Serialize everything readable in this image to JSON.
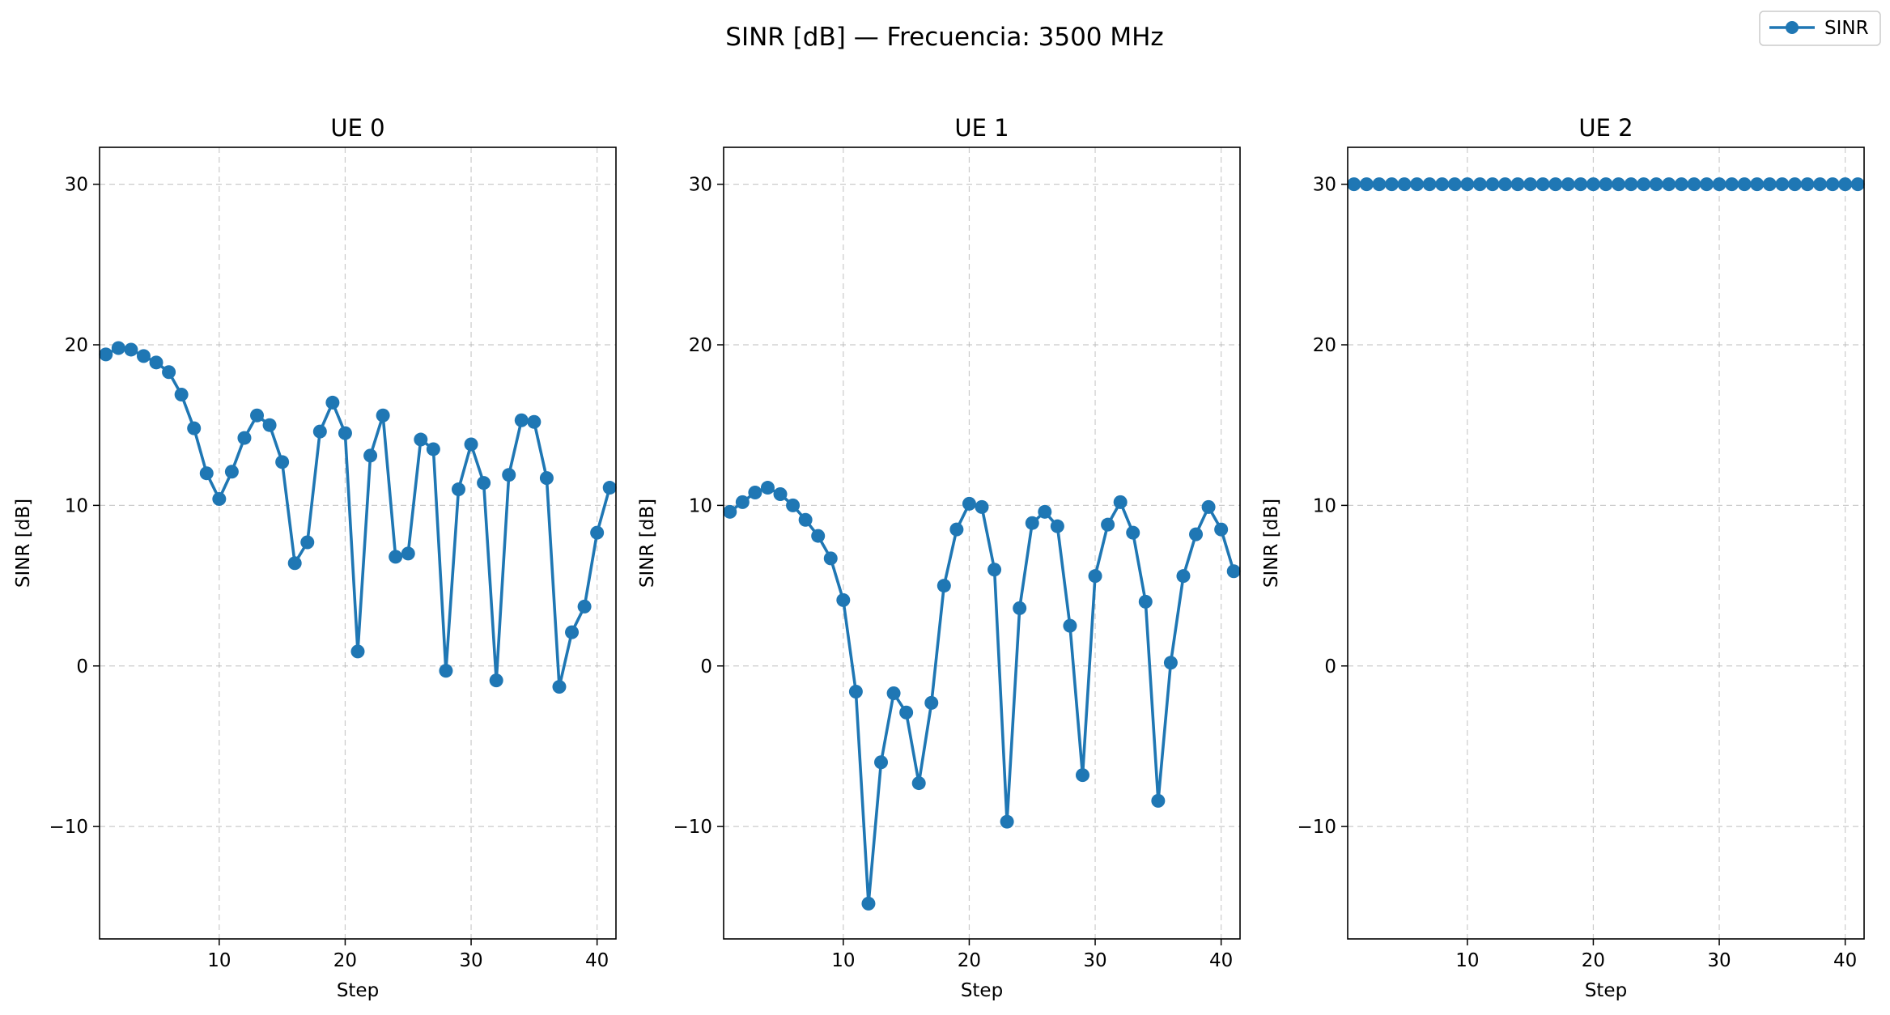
{
  "figure": {
    "title": "SINR [dB] — Frecuencia: 3500 MHz",
    "series_color": "#1f77b4",
    "legend": {
      "label": "SINR",
      "placement": "upper-right"
    }
  },
  "chart_data": [
    {
      "type": "line",
      "title": "UE 0",
      "xlabel": "Step",
      "ylabel": "SINR [dB]",
      "xlim": [
        0.5,
        41.5
      ],
      "ylim": [
        -17,
        32.3
      ],
      "xticks": [
        10,
        20,
        30,
        40
      ],
      "xtick_labels": [
        "10",
        "20",
        "30",
        "40"
      ],
      "yticks": [
        -10,
        0,
        10,
        20,
        30
      ],
      "ytick_labels": [
        "−10",
        "0",
        "10",
        "20",
        "30"
      ],
      "grid": true,
      "series": [
        {
          "name": "SINR",
          "marker": "circle",
          "x": [
            1,
            2,
            3,
            4,
            5,
            6,
            7,
            8,
            9,
            10,
            11,
            12,
            13,
            14,
            15,
            16,
            17,
            18,
            19,
            20,
            21,
            22,
            23,
            24,
            25,
            26,
            27,
            28,
            29,
            30,
            31,
            32,
            33,
            34,
            35,
            36,
            37,
            38,
            39,
            40,
            41
          ],
          "values": [
            19.4,
            19.8,
            19.7,
            19.3,
            18.9,
            18.3,
            16.9,
            14.8,
            12.0,
            10.4,
            12.1,
            14.2,
            15.6,
            15.0,
            12.7,
            6.4,
            7.7,
            14.6,
            16.4,
            14.5,
            0.9,
            13.1,
            15.6,
            6.8,
            7.0,
            14.1,
            13.5,
            -0.3,
            11.0,
            13.8,
            11.4,
            -0.9,
            11.9,
            15.3,
            15.2,
            11.7,
            -1.3,
            2.1,
            3.7,
            8.3,
            11.1
          ]
        }
      ]
    },
    {
      "type": "line",
      "title": "UE 1",
      "xlabel": "Step",
      "ylabel": "SINR [dB]",
      "xlim": [
        0.5,
        41.5
      ],
      "ylim": [
        -17,
        32.3
      ],
      "xticks": [
        10,
        20,
        30,
        40
      ],
      "xtick_labels": [
        "10",
        "20",
        "30",
        "40"
      ],
      "yticks": [
        -10,
        0,
        10,
        20,
        30
      ],
      "ytick_labels": [
        "−10",
        "0",
        "10",
        "20",
        "30"
      ],
      "grid": true,
      "series": [
        {
          "name": "SINR",
          "marker": "circle",
          "x": [
            1,
            2,
            3,
            4,
            5,
            6,
            7,
            8,
            9,
            10,
            11,
            12,
            13,
            14,
            15,
            16,
            17,
            18,
            19,
            20,
            21,
            22,
            23,
            24,
            25,
            26,
            27,
            28,
            29,
            30,
            31,
            32,
            33,
            34,
            35,
            36,
            37,
            38,
            39,
            40,
            41
          ],
          "values": [
            9.6,
            10.2,
            10.8,
            11.1,
            10.7,
            10.0,
            9.1,
            8.1,
            6.7,
            4.1,
            -1.6,
            -14.8,
            -6.0,
            -1.7,
            -2.9,
            -7.3,
            -2.3,
            5.0,
            8.5,
            10.1,
            9.9,
            6.0,
            -9.7,
            3.6,
            8.9,
            9.6,
            8.7,
            2.5,
            -6.8,
            5.6,
            8.8,
            10.2,
            8.3,
            4.0,
            -8.4,
            0.2,
            5.6,
            8.2,
            9.9,
            8.5,
            5.9
          ]
        }
      ]
    },
    {
      "type": "line",
      "title": "UE 2",
      "xlabel": "Step",
      "ylabel": "SINR [dB]",
      "xlim": [
        0.5,
        41.5
      ],
      "ylim": [
        -17,
        32.3
      ],
      "xticks": [
        10,
        20,
        30,
        40
      ],
      "xtick_labels": [
        "10",
        "20",
        "30",
        "40"
      ],
      "yticks": [
        -10,
        0,
        10,
        20,
        30
      ],
      "ytick_labels": [
        "−10",
        "0",
        "10",
        "20",
        "30"
      ],
      "grid": true,
      "series": [
        {
          "name": "SINR",
          "marker": "circle",
          "x": [
            1,
            2,
            3,
            4,
            5,
            6,
            7,
            8,
            9,
            10,
            11,
            12,
            13,
            14,
            15,
            16,
            17,
            18,
            19,
            20,
            21,
            22,
            23,
            24,
            25,
            26,
            27,
            28,
            29,
            30,
            31,
            32,
            33,
            34,
            35,
            36,
            37,
            38,
            39,
            40,
            41
          ],
          "values": [
            30,
            30,
            30,
            30,
            30,
            30,
            30,
            30,
            30,
            30,
            30,
            30,
            30,
            30,
            30,
            30,
            30,
            30,
            30,
            30,
            30,
            30,
            30,
            30,
            30,
            30,
            30,
            30,
            30,
            30,
            30,
            30,
            30,
            30,
            30,
            30,
            30,
            30,
            30,
            30,
            30
          ]
        }
      ]
    }
  ]
}
